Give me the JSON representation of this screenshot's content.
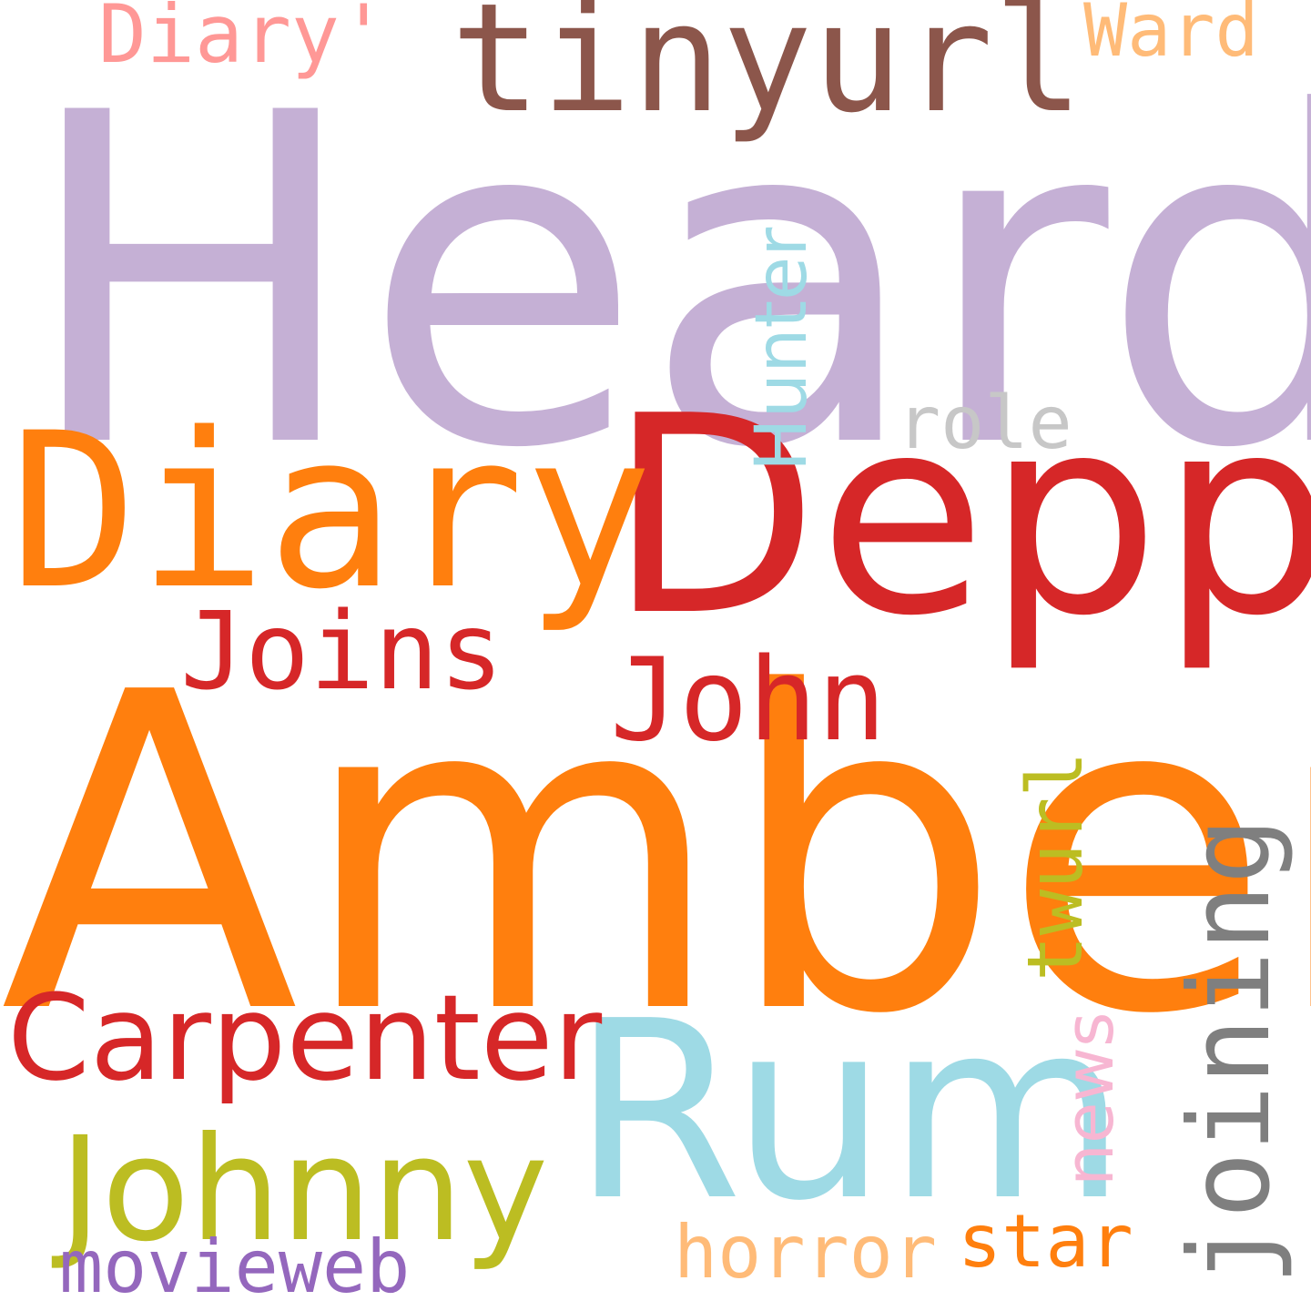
{
  "words": {
    "heard": {
      "text": "Heard",
      "color": "#c5b0d5"
    },
    "amber": {
      "text": "Amber",
      "color": "#ff7f0e"
    },
    "depp": {
      "text": "Depp",
      "color": "#d62728"
    },
    "rum": {
      "text": "Rum",
      "color": "#9edae5"
    },
    "diary": {
      "text": "Diary",
      "color": "#ff7f0e"
    },
    "tinyurl": {
      "text": "tinyurl",
      "color": "#8c564b"
    },
    "johnny": {
      "text": "Johnny",
      "color": "#bcbd22"
    },
    "carpenter": {
      "text": "Carpenter",
      "color": "#d62728"
    },
    "joins": {
      "text": "Joins",
      "color": "#d62728"
    },
    "john": {
      "text": "John",
      "color": "#d62728"
    },
    "diary_q": {
      "text": "Diary'",
      "color": "#ff9896"
    },
    "ward": {
      "text": "Ward",
      "color": "#ffbb78"
    },
    "role": {
      "text": "role",
      "color": "#c7c7c7"
    },
    "hunter": {
      "text": "Hunter",
      "color": "#9edae5"
    },
    "twurl": {
      "text": "twurl",
      "color": "#bcbd22"
    },
    "news": {
      "text": "news",
      "color": "#f7b6d2"
    },
    "joining": {
      "text": "joining",
      "color": "#7f7f7f"
    },
    "horror": {
      "text": "horror",
      "color": "#ffbb78"
    },
    "star": {
      "text": "star",
      "color": "#ff7f0e"
    },
    "movieweb": {
      "text": "movieweb",
      "color": "#9467bd"
    }
  }
}
